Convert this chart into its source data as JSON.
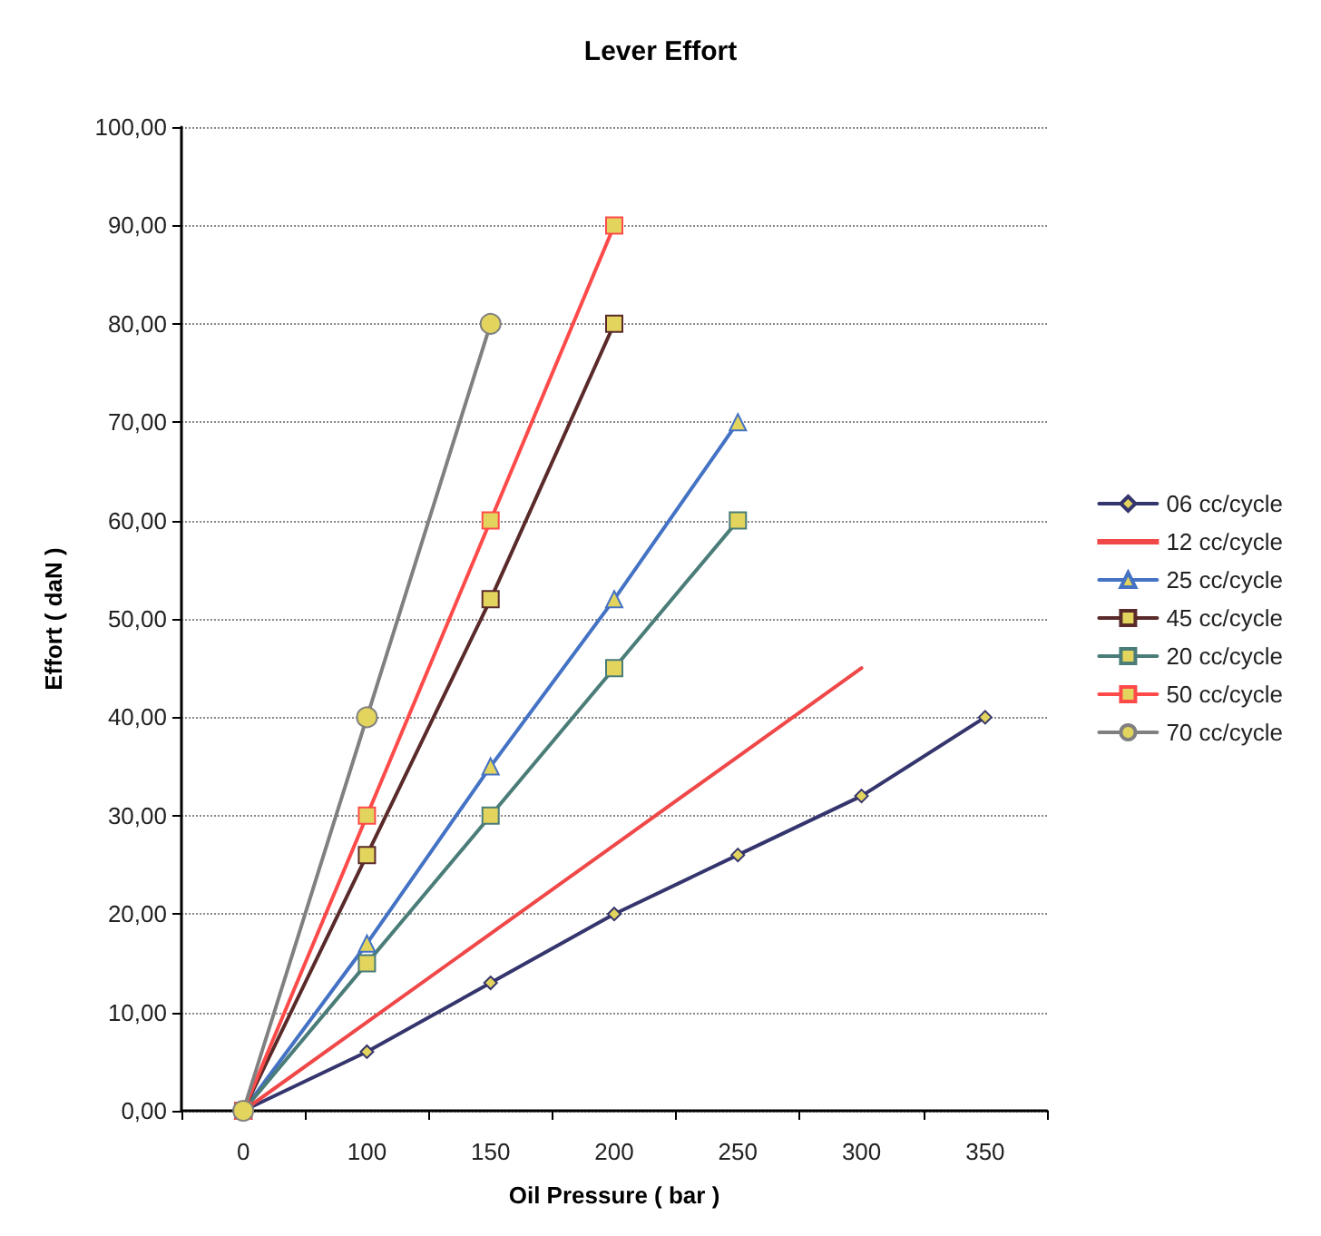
{
  "chart_data": {
    "type": "line",
    "title": "Lever Effort",
    "xlabel": "Oil Pressure ( bar )",
    "ylabel": "Effort ( daN )",
    "categories": [
      "0",
      "100",
      "150",
      "200",
      "250",
      "300",
      "350"
    ],
    "ylim": [
      0,
      100
    ],
    "yticks": [
      {
        "value": 0,
        "label": "0,00"
      },
      {
        "value": 10,
        "label": "10,00"
      },
      {
        "value": 20,
        "label": "20,00"
      },
      {
        "value": 30,
        "label": "30,00"
      },
      {
        "value": 40,
        "label": "40,00"
      },
      {
        "value": 50,
        "label": "50,00"
      },
      {
        "value": 60,
        "label": "60,00"
      },
      {
        "value": 70,
        "label": "70,00"
      },
      {
        "value": 80,
        "label": "80,00"
      },
      {
        "value": 90,
        "label": "90,00"
      },
      {
        "value": 100,
        "label": "100,00"
      }
    ],
    "grid": "y",
    "legend": "right",
    "series": [
      {
        "name": "06 cc/cycle",
        "color": "#35356e",
        "marker": "diamond",
        "values": [
          0,
          6,
          13,
          20,
          26,
          32,
          40
        ]
      },
      {
        "name": "12 cc/cycle",
        "color": "#f04848",
        "marker": "none",
        "values": [
          0,
          9,
          18,
          27,
          36,
          45,
          null
        ]
      },
      {
        "name": "25 cc/cycle",
        "color": "#4472c4",
        "marker": "triangle",
        "values": [
          0,
          17,
          35,
          52,
          70,
          null,
          null
        ]
      },
      {
        "name": "45 cc/cycle",
        "color": "#5a2a2a",
        "marker": "square",
        "values": [
          0,
          26,
          52,
          80,
          null,
          null,
          null
        ]
      },
      {
        "name": "20 cc/cycle",
        "color": "#4a7c78",
        "marker": "square",
        "values": [
          0,
          15,
          30,
          45,
          60,
          null,
          null
        ]
      },
      {
        "name": "50 cc/cycle",
        "color": "#ff4a4a",
        "marker": "square",
        "values": [
          0,
          30,
          60,
          90,
          null,
          null,
          null
        ]
      },
      {
        "name": "70 cc/cycle",
        "color": "#808080",
        "marker": "circle",
        "values": [
          0,
          40,
          80,
          null,
          null,
          null,
          null
        ]
      }
    ]
  }
}
